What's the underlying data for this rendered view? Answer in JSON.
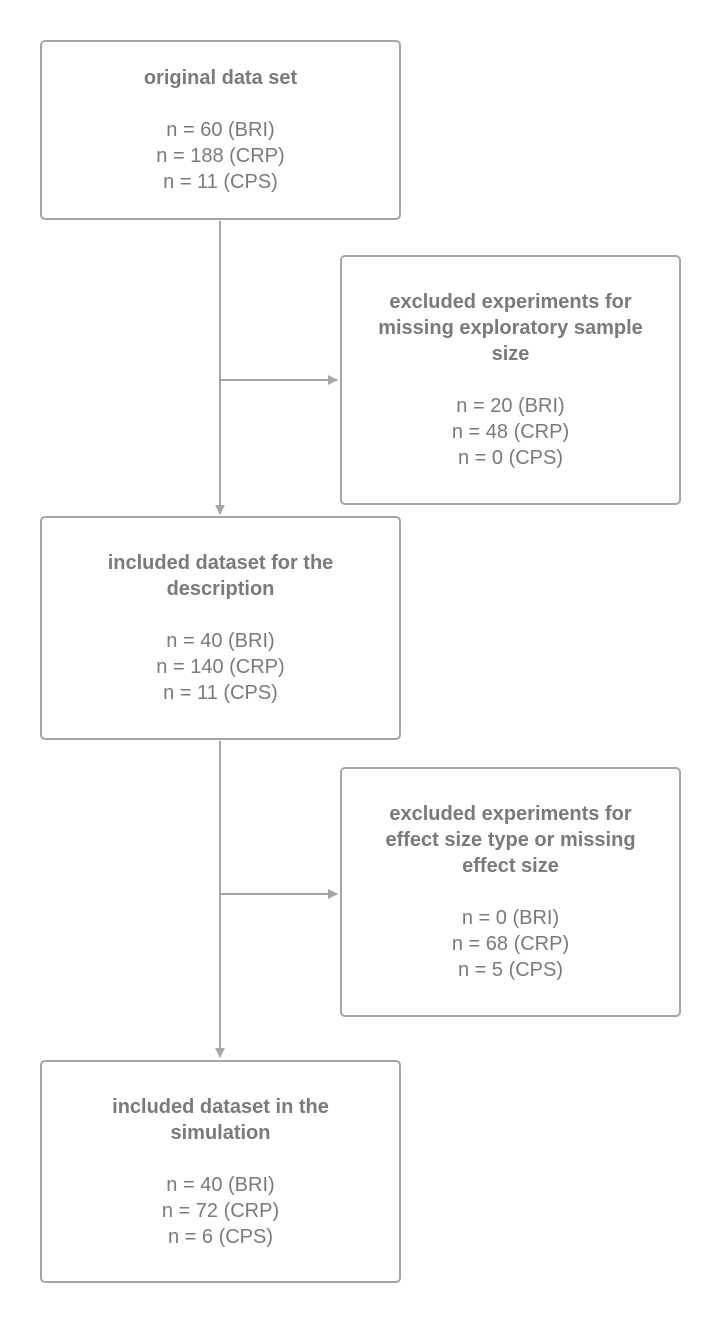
{
  "flowchart": {
    "boxes": {
      "original": {
        "title": "original data set",
        "counts": [
          "n = 60 (BRI)",
          "n = 188 (CRP)",
          "n = 11 (CPS)"
        ]
      },
      "excluded_sample_size": {
        "title": "excluded experiments for\nmissing exploratory sample\nsize",
        "counts": [
          "n = 20 (BRI)",
          "n = 48 (CRP)",
          "n = 0 (CPS)"
        ]
      },
      "description": {
        "title": "included dataset for the\ndescription",
        "counts": [
          "n = 40 (BRI)",
          "n = 140 (CRP)",
          "n = 11 (CPS)"
        ]
      },
      "excluded_effect_size": {
        "title": "excluded experiments for\neffect size type or missing\neffect size",
        "counts": [
          "n = 0 (BRI)",
          "n = 68 (CRP)",
          "n = 5 (CPS)"
        ]
      },
      "simulation": {
        "title": "included dataset in the\nsimulation",
        "counts": [
          "n = 40 (BRI)",
          "n = 72 (CRP)",
          "n = 6 (CPS)"
        ]
      }
    },
    "colors": {
      "stroke": "#a6a6a6",
      "text": "#7a7a7a",
      "background": "#ffffff"
    }
  }
}
